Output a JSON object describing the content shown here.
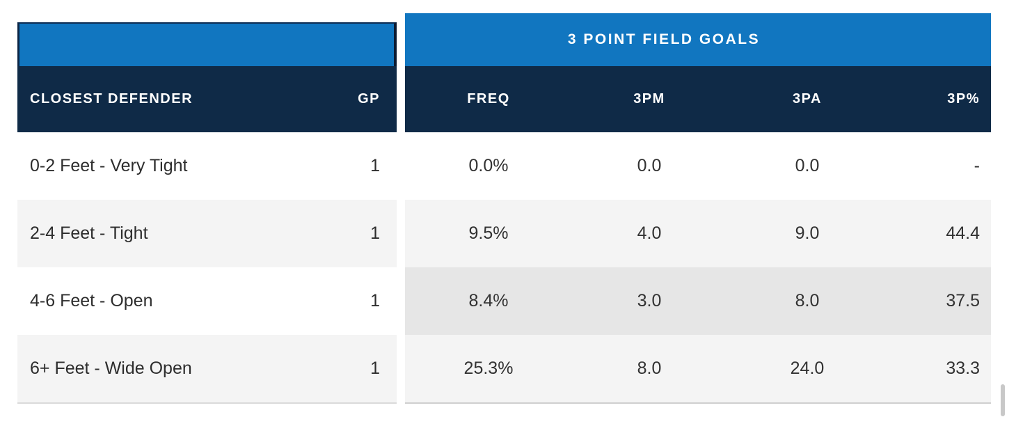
{
  "colors": {
    "band_blue": "#1176c0",
    "band_navy": "#0f2a47",
    "header_text": "#ffffff",
    "row_text": "#2d2d2d",
    "stripe_light": "#f4f4f4",
    "stripe_dark": "#e6e6e6",
    "table_bottom_border": "#d4d4d4"
  },
  "left_table": {
    "header": {
      "defender_label": "CLOSEST DEFENDER",
      "gp_label": "GP"
    },
    "rows": [
      {
        "defender": "0-2 Feet - Very Tight",
        "gp": "1"
      },
      {
        "defender": "2-4 Feet - Tight",
        "gp": "1"
      },
      {
        "defender": "4-6 Feet - Open",
        "gp": "1"
      },
      {
        "defender": "6+ Feet - Wide Open",
        "gp": "1"
      }
    ]
  },
  "right_table": {
    "group_header": "3 POINT FIELD GOALS",
    "columns": [
      "FREQ",
      "3PM",
      "3PA",
      "3P%"
    ],
    "rows": [
      [
        "0.0%",
        "0.0",
        "0.0",
        "-"
      ],
      [
        "9.5%",
        "4.0",
        "9.0",
        "44.4"
      ],
      [
        "8.4%",
        "3.0",
        "8.0",
        "37.5"
      ],
      [
        "25.3%",
        "8.0",
        "24.0",
        "33.3"
      ]
    ]
  }
}
